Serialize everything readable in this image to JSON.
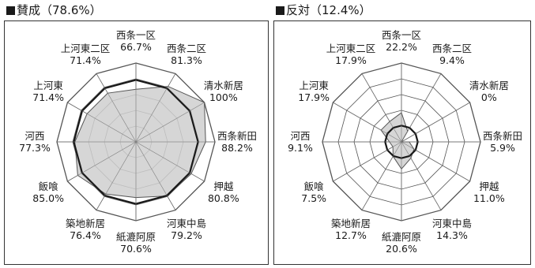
{
  "chart_data": [
    {
      "type": "radar",
      "title": "■賛成（78.6%）",
      "title_text": "賛成（78.6%）",
      "categories": [
        "西条一区",
        "西条二区",
        "清水新居",
        "西条新田",
        "押越",
        "河東中島",
        "紙漉阿原",
        "築地新居",
        "飯喰",
        "河西",
        "上河東",
        "上河東二区"
      ],
      "value_labels": [
        "66.7%",
        "81.3%",
        "100%",
        "88.2%",
        "80.8%",
        "79.2%",
        "70.6%",
        "76.4%",
        "85.0%",
        "77.3%",
        "71.4%",
        "71.4%"
      ],
      "series": [
        {
          "values": [
            66.7,
            81.3,
            100,
            88.2,
            80.8,
            79.2,
            70.6,
            76.4,
            85.0,
            77.3,
            71.4,
            71.4
          ],
          "fill": "#cfcfcf"
        },
        {
          "values": [
            78.6,
            78.6,
            78.6,
            78.6,
            78.6,
            78.6,
            78.6,
            78.6,
            78.6,
            78.6,
            78.6,
            78.6
          ],
          "fill": "none"
        }
      ],
      "rlim": [
        0,
        100
      ],
      "rings": 5
    },
    {
      "type": "radar",
      "title": "■反対（12.4%）",
      "title_text": "反対（12.4%）",
      "categories": [
        "西条一区",
        "西条二区",
        "清水新居",
        "西条新田",
        "押越",
        "河東中島",
        "紙漉阿原",
        "築地新居",
        "飯喰",
        "河西",
        "上河東",
        "上河東二区"
      ],
      "value_labels": [
        "22.2%",
        "9.4%",
        "0%",
        "5.9%",
        "11.0%",
        "14.3%",
        "20.6%",
        "12.7%",
        "7.5%",
        "9.1%",
        "17.9%",
        "17.9%"
      ],
      "series": [
        {
          "values": [
            22.2,
            9.4,
            0,
            5.9,
            11.0,
            14.3,
            20.6,
            12.7,
            7.5,
            9.1,
            17.9,
            17.9
          ],
          "fill": "#cfcfcf"
        },
        {
          "values": [
            12.4,
            12.4,
            12.4,
            12.4,
            12.4,
            12.4,
            12.4,
            12.4,
            12.4,
            12.4,
            12.4,
            12.4
          ],
          "fill": "none"
        }
      ],
      "rlim": [
        0,
        60
      ],
      "rings": 5
    }
  ]
}
